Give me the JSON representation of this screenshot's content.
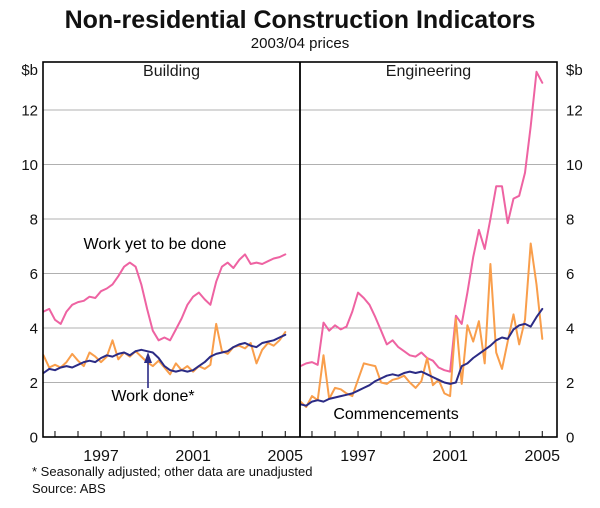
{
  "chart_data": {
    "type": "line",
    "title": "Non-residential Construction Indicators",
    "subtitle": "2003/04 prices",
    "unit_label": "$b",
    "footnote": "* Seasonally adjusted; other data are unadjusted",
    "source": "Source: ABS",
    "x_start": 1994.5,
    "x_step": 0.25,
    "x_axis": {
      "domain": [
        1994.48,
        2005.64
      ],
      "tick_years": [
        1995,
        1996,
        1997,
        1998,
        1999,
        2000,
        2001,
        2002,
        2003,
        2004,
        2005
      ],
      "label_years": [
        1997,
        2001,
        2005
      ]
    },
    "y_axis": {
      "range": [
        0,
        14
      ],
      "gridlines": [
        2,
        4,
        6,
        8,
        10,
        12
      ],
      "tick_values": [
        12,
        10,
        8,
        6,
        4,
        2,
        0
      ],
      "grid_on": true
    },
    "colors": {
      "pink": "#ee63a2",
      "navy": "#2b2b85",
      "orange": "#f99e4b",
      "grid": "#b0b0b0",
      "axis": "#000000"
    },
    "panels": [
      {
        "title": "Building",
        "series": [
          {
            "id": "building-work-yet-to-be-done",
            "name": "Work yet to be done",
            "color": "pink",
            "values": [
              4.6,
              4.7,
              4.3,
              4.15,
              4.6,
              4.85,
              4.95,
              5.0,
              5.15,
              5.1,
              5.35,
              5.45,
              5.6,
              5.9,
              6.25,
              6.4,
              6.25,
              5.6,
              4.7,
              3.9,
              3.55,
              3.65,
              3.55,
              3.95,
              4.35,
              4.85,
              5.15,
              5.3,
              5.05,
              4.85,
              5.7,
              6.25,
              6.4,
              6.2,
              6.5,
              6.7,
              6.35,
              6.4,
              6.35,
              6.45,
              6.55,
              6.6,
              6.7
            ]
          },
          {
            "id": "building-commencements",
            "name": "Commencements",
            "color": "orange",
            "values": [
              3.0,
              2.55,
              2.65,
              2.55,
              2.75,
              3.05,
              2.8,
              2.6,
              3.1,
              2.95,
              2.75,
              2.95,
              3.55,
              2.85,
              3.1,
              2.95,
              3.15,
              2.95,
              2.75,
              2.6,
              2.8,
              2.55,
              2.3,
              2.7,
              2.45,
              2.6,
              2.4,
              2.6,
              2.5,
              2.65,
              4.15,
              3.15,
              3.05,
              3.3,
              3.35,
              3.25,
              3.45,
              2.7,
              3.2,
              3.45,
              3.35,
              3.55,
              3.85
            ]
          },
          {
            "id": "building-work-done",
            "name": "Work done*",
            "color": "navy",
            "values": [
              2.35,
              2.5,
              2.45,
              2.55,
              2.6,
              2.55,
              2.65,
              2.75,
              2.8,
              2.75,
              2.9,
              3.0,
              2.95,
              3.05,
              3.1,
              3.0,
              3.15,
              3.2,
              3.15,
              3.1,
              2.9,
              2.6,
              2.45,
              2.4,
              2.45,
              2.4,
              2.45,
              2.6,
              2.75,
              2.95,
              3.05,
              3.1,
              3.15,
              3.3,
              3.4,
              3.45,
              3.35,
              3.3,
              3.45,
              3.5,
              3.55,
              3.65,
              3.75
            ]
          }
        ]
      },
      {
        "title": "Engineering",
        "series": [
          {
            "id": "engineering-work-yet-to-be-done",
            "name": "Work yet to be done",
            "color": "pink",
            "values": [
              2.6,
              2.7,
              2.75,
              2.65,
              4.2,
              3.9,
              4.1,
              3.95,
              4.05,
              4.6,
              5.3,
              5.1,
              4.85,
              4.4,
              3.9,
              3.4,
              3.55,
              3.3,
              3.15,
              3.0,
              2.95,
              3.1,
              2.9,
              2.8,
              2.55,
              2.45,
              2.4,
              4.45,
              4.15,
              5.3,
              6.6,
              7.6,
              6.9,
              8.0,
              9.2,
              9.2,
              7.85,
              8.75,
              8.85,
              9.7,
              11.4,
              13.4,
              13.0
            ]
          },
          {
            "id": "engineering-commencements",
            "name": "Commencements",
            "color": "orange",
            "values": [
              1.3,
              1.1,
              1.5,
              1.35,
              3.0,
              1.4,
              1.8,
              1.75,
              1.6,
              1.5,
              2.1,
              2.7,
              2.65,
              2.6,
              2.0,
              1.95,
              2.1,
              2.15,
              2.25,
              2.0,
              1.8,
              2.05,
              2.9,
              1.9,
              2.1,
              1.6,
              1.5,
              4.35,
              1.95,
              4.1,
              3.5,
              4.25,
              2.7,
              6.35,
              3.1,
              2.5,
              3.5,
              4.5,
              3.4,
              4.3,
              7.1,
              5.6,
              3.6
            ]
          },
          {
            "id": "engineering-work-done",
            "name": "Work done*",
            "color": "navy",
            "values": [
              1.2,
              1.15,
              1.3,
              1.35,
              1.3,
              1.4,
              1.45,
              1.5,
              1.55,
              1.6,
              1.7,
              1.8,
              1.9,
              2.05,
              2.15,
              2.25,
              2.3,
              2.25,
              2.35,
              2.4,
              2.35,
              2.4,
              2.3,
              2.2,
              2.1,
              2.0,
              1.95,
              2.0,
              2.6,
              2.7,
              2.9,
              3.05,
              3.2,
              3.35,
              3.55,
              3.65,
              3.6,
              3.95,
              4.1,
              4.15,
              4.05,
              4.4,
              4.7
            ]
          }
        ]
      }
    ]
  }
}
